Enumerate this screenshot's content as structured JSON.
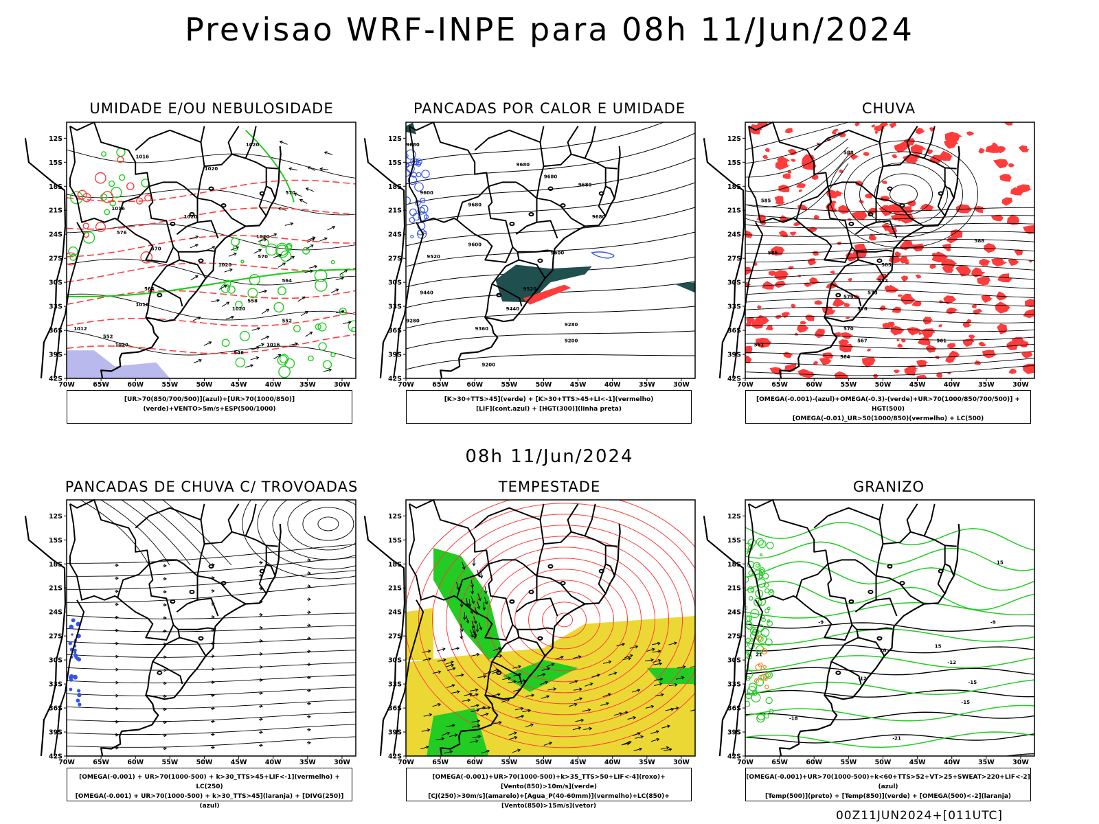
{
  "title": "Previsao WRF-INPE  para 08h 11/Jun/2024",
  "mid_title": "08h 11/Jun/2024",
  "footer": "00Z11JUN2024+[011UTC]",
  "axes": {
    "lat_labels": [
      "12S",
      "15S",
      "18S",
      "21S",
      "24S",
      "27S",
      "30S",
      "33S",
      "36S",
      "39S",
      "42S"
    ],
    "lon_labels": [
      "70W",
      "65W",
      "60W",
      "55W",
      "50W",
      "45W",
      "40W",
      "35W",
      "30W"
    ]
  },
  "colors": {
    "red": "#ff3b3b",
    "green": "#22cc22",
    "blue": "#3355ee",
    "darkgreen": "#1f4f4f",
    "yellow": "#ecd834",
    "lavender": "#b9b9ee",
    "black": "#000000",
    "orange": "#ee8822"
  },
  "panels": [
    {
      "id": "umidade",
      "title": "UMIDADE E/OU NEBULOSIDADE",
      "legend": [
        "[UR>70(850/700/500)](azul)+[UR>70(1000/850)](verde)+VENTO>5m/s+ESP(500/1000)"
      ],
      "contour_labels": [
        {
          "t": "1016",
          "lon": -59,
          "lat": -14.5
        },
        {
          "t": "1020",
          "lon": -43,
          "lat": -13
        },
        {
          "t": "1020",
          "lon": -49,
          "lat": -16
        },
        {
          "t": "1016",
          "lon": -62.5,
          "lat": -21
        },
        {
          "t": "1020",
          "lon": -52,
          "lat": -22
        },
        {
          "t": "1020",
          "lon": -41.5,
          "lat": -24.5
        },
        {
          "t": "1020",
          "lon": -47,
          "lat": -28
        },
        {
          "t": "1016",
          "lon": -59,
          "lat": -33
        },
        {
          "t": "1020",
          "lon": -45,
          "lat": -33.5
        },
        {
          "t": "1012",
          "lon": -68,
          "lat": -36
        },
        {
          "t": "1020",
          "lon": -62,
          "lat": -38
        },
        {
          "t": "1016",
          "lon": -40,
          "lat": -38
        },
        {
          "t": "576",
          "lon": -62,
          "lat": -24
        },
        {
          "t": "570",
          "lon": -57,
          "lat": -26
        },
        {
          "t": "570",
          "lon": -41.5,
          "lat": -27
        },
        {
          "t": "564",
          "lon": -58,
          "lat": -31
        },
        {
          "t": "564",
          "lon": -38,
          "lat": -30
        },
        {
          "t": "558",
          "lon": -43,
          "lat": -32.5
        },
        {
          "t": "552",
          "lon": -38,
          "lat": -35
        },
        {
          "t": "552",
          "lon": -64,
          "lat": -37
        },
        {
          "t": "546",
          "lon": -45,
          "lat": -39
        },
        {
          "t": "570",
          "lon": -37.5,
          "lat": -19
        }
      ]
    },
    {
      "id": "pancadas_calor",
      "title": "PANCADAS POR CALOR E UMIDADE",
      "legend": [
        "[K>30+TTS>45](verde) + [K>30+TTS>45+LI<-1](vermelho)",
        "[LIF](cont.azul) + [HGT(300)](linha preta)"
      ],
      "contour_labels": [
        {
          "t": "9680",
          "lon": -69,
          "lat": -13
        },
        {
          "t": "9680",
          "lon": -49,
          "lat": -17
        },
        {
          "t": "9680",
          "lon": -53,
          "lat": -15.5
        },
        {
          "t": "9680",
          "lon": -44,
          "lat": -18
        },
        {
          "t": "9680",
          "lon": -60,
          "lat": -20.5
        },
        {
          "t": "9680",
          "lon": -42,
          "lat": -22
        },
        {
          "t": "9600",
          "lon": -67,
          "lat": -19
        },
        {
          "t": "9600",
          "lon": -60,
          "lat": -25.5
        },
        {
          "t": "9600",
          "lon": -48,
          "lat": -26.5
        },
        {
          "t": "9520",
          "lon": -66,
          "lat": -27
        },
        {
          "t": "9520",
          "lon": -52,
          "lat": -31
        },
        {
          "t": "9440",
          "lon": -67,
          "lat": -31.5
        },
        {
          "t": "9440",
          "lon": -54.5,
          "lat": -33.5
        },
        {
          "t": "9360",
          "lon": -59,
          "lat": -36
        },
        {
          "t": "9280",
          "lon": -69,
          "lat": -35
        },
        {
          "t": "9280",
          "lon": -46,
          "lat": -35.5
        },
        {
          "t": "9200",
          "lon": -46,
          "lat": -37.5
        },
        {
          "t": "9200",
          "lon": -58,
          "lat": -40.5
        }
      ]
    },
    {
      "id": "chuva",
      "title": "CHUVA",
      "legend": [
        "[OMEGA(-0.001)-(azul)+OMEGA(-0.3)-(verde)+UR>70(1000/850/700/500)] + HGT(500)",
        "[OMEGA(-0.01)_UR>50(1000/850)(vermelho) + LC(500)"
      ],
      "contour_labels": [
        {
          "t": "588",
          "lon": -55,
          "lat": -14
        },
        {
          "t": "588",
          "lon": -36,
          "lat": -25
        },
        {
          "t": "585",
          "lon": -67,
          "lat": -20
        },
        {
          "t": "585",
          "lon": -66,
          "lat": -26.5
        },
        {
          "t": "585",
          "lon": -49.5,
          "lat": -28
        },
        {
          "t": "582",
          "lon": -50,
          "lat": -30
        },
        {
          "t": "579",
          "lon": -55,
          "lat": -32
        },
        {
          "t": "576",
          "lon": -53,
          "lat": -33.5
        },
        {
          "t": "573",
          "lon": -51.5,
          "lat": -31.5
        },
        {
          "t": "570",
          "lon": -55,
          "lat": -36
        },
        {
          "t": "567",
          "lon": -53,
          "lat": -37.5
        },
        {
          "t": "564",
          "lon": -55.5,
          "lat": -39.5
        },
        {
          "t": "561",
          "lon": -68,
          "lat": -38
        },
        {
          "t": "561",
          "lon": -41.5,
          "lat": -37.5
        }
      ]
    },
    {
      "id": "trovoadas",
      "title": "PANCADAS DE CHUVA C/ TROVOADAS",
      "legend": [
        "[OMEGA(-0.001) + UR>70(1000-500) + k>30_TTS>45+LIF<-1](vermelho) + LC(250)",
        "[OMEGA(-0.001) + UR>70(1000-500) + k>30_TTS>45](laranja) + [DIVG(250)](azul)"
      ],
      "contour_labels": []
    },
    {
      "id": "tempestade",
      "title": "TEMPESTADE",
      "legend": [
        "[OMEGA(-0.001)+UR>70(1000-500)+k>35_TTS>50+LIF<-4](roxo)+[Vento(850)>10m/s](verde)",
        "[CJ(250)>30m/s](amarelo)+[Agua_P(40-60mm)](vermelho)+LC(850)+[Vento(850)>15m/s](vetor)"
      ],
      "contour_labels": []
    },
    {
      "id": "granizo",
      "title": "GRANIZO",
      "legend": [
        "[OMEGA(-0.001)+UR>70(1000-500)+k<60+TTS>52+VT>25+SWEAT>220+LIF<-2](azul)",
        "[Temp(500)](preto) + [Temp(850)](verde) + [OMEGA(500)<-2](laranja)"
      ],
      "contour_labels": [
        {
          "t": "-9",
          "lon": -59,
          "lat": -25.5
        },
        {
          "t": "-9",
          "lon": -34,
          "lat": -25.5
        },
        {
          "t": "-12",
          "lon": -40,
          "lat": -30.5
        },
        {
          "t": "-12",
          "lon": -53,
          "lat": -32.5
        },
        {
          "t": "-15",
          "lon": -37,
          "lat": -33
        },
        {
          "t": "-15",
          "lon": -38,
          "lat": -35.5
        },
        {
          "t": "-18",
          "lon": -63,
          "lat": -37.5
        },
        {
          "t": "-21",
          "lon": -48,
          "lat": -40
        },
        {
          "t": "15",
          "lon": -33,
          "lat": -18
        },
        {
          "t": "15",
          "lon": -42,
          "lat": -28.5
        },
        {
          "t": "18",
          "lon": -50,
          "lat": -29
        },
        {
          "t": "21",
          "lon": -68,
          "lat": -29.5
        }
      ]
    }
  ]
}
